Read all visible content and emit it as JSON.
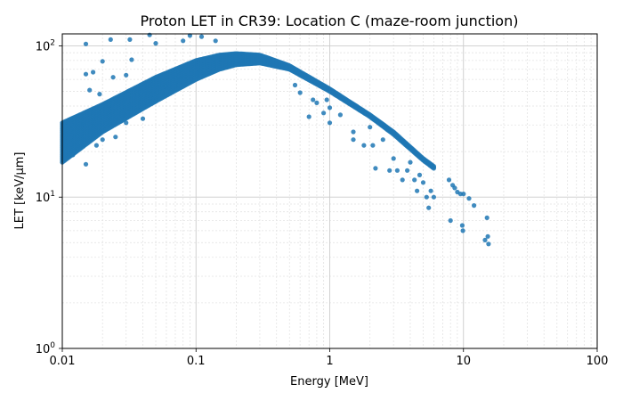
{
  "chart_data": {
    "type": "scatter",
    "title": "Proton LET in CR39: Location C (maze-room junction)",
    "xlabel": "Energy [MeV]",
    "ylabel": "LET [keV/µm]",
    "xscale": "log",
    "yscale": "log",
    "xlim": [
      0.01,
      100
    ],
    "ylim": [
      1,
      120
    ],
    "x_ticks": [
      0.01,
      0.1,
      1,
      10,
      100
    ],
    "x_tick_labels": [
      "0.01",
      "0.1",
      "1",
      "10",
      "100"
    ],
    "y_ticks": [
      1,
      10,
      100
    ],
    "grid": "major and minor",
    "legend": "none",
    "marker_color": "#1f77b4",
    "bands": {
      "upper_band": [
        {
          "x": 0.01,
          "y": 31
        },
        {
          "x": 0.02,
          "y": 41
        },
        {
          "x": 0.05,
          "y": 62
        },
        {
          "x": 0.1,
          "y": 80
        },
        {
          "x": 0.15,
          "y": 87
        },
        {
          "x": 0.2,
          "y": 89
        },
        {
          "x": 0.3,
          "y": 87
        },
        {
          "x": 0.5,
          "y": 74
        },
        {
          "x": 1,
          "y": 52
        },
        {
          "x": 2,
          "y": 35
        },
        {
          "x": 3,
          "y": 27
        },
        {
          "x": 5,
          "y": 18
        },
        {
          "x": 6,
          "y": 16
        }
      ],
      "lower_band": [
        {
          "x": 0.01,
          "y": 17
        },
        {
          "x": 0.02,
          "y": 27
        },
        {
          "x": 0.05,
          "y": 43
        },
        {
          "x": 0.1,
          "y": 60
        },
        {
          "x": 0.15,
          "y": 70
        },
        {
          "x": 0.2,
          "y": 75
        },
        {
          "x": 0.3,
          "y": 77
        },
        {
          "x": 0.5,
          "y": 70
        },
        {
          "x": 1,
          "y": 50
        },
        {
          "x": 2,
          "y": 34
        },
        {
          "x": 3,
          "y": 26
        },
        {
          "x": 5,
          "y": 17.5
        },
        {
          "x": 6,
          "y": 15.5
        }
      ]
    },
    "scatter_points": [
      {
        "x": 0.015,
        "y": 103
      },
      {
        "x": 0.023,
        "y": 110
      },
      {
        "x": 0.032,
        "y": 110
      },
      {
        "x": 0.045,
        "y": 118
      },
      {
        "x": 0.05,
        "y": 104
      },
      {
        "x": 0.08,
        "y": 108
      },
      {
        "x": 0.09,
        "y": 117
      },
      {
        "x": 0.11,
        "y": 115
      },
      {
        "x": 0.14,
        "y": 108
      },
      {
        "x": 0.015,
        "y": 65
      },
      {
        "x": 0.017,
        "y": 67
      },
      {
        "x": 0.02,
        "y": 79
      },
      {
        "x": 0.024,
        "y": 62
      },
      {
        "x": 0.03,
        "y": 64
      },
      {
        "x": 0.033,
        "y": 81
      },
      {
        "x": 0.016,
        "y": 51
      },
      {
        "x": 0.019,
        "y": 48
      },
      {
        "x": 0.025,
        "y": 25
      },
      {
        "x": 0.03,
        "y": 31
      },
      {
        "x": 0.04,
        "y": 33
      },
      {
        "x": 0.05,
        "y": 43
      },
      {
        "x": 0.06,
        "y": 50
      },
      {
        "x": 0.075,
        "y": 55
      },
      {
        "x": 0.015,
        "y": 16.5
      },
      {
        "x": 0.018,
        "y": 22
      },
      {
        "x": 0.02,
        "y": 24
      },
      {
        "x": 0.012,
        "y": 19
      },
      {
        "x": 0.55,
        "y": 55
      },
      {
        "x": 0.6,
        "y": 49
      },
      {
        "x": 0.7,
        "y": 34
      },
      {
        "x": 0.75,
        "y": 44
      },
      {
        "x": 0.8,
        "y": 42
      },
      {
        "x": 0.9,
        "y": 36
      },
      {
        "x": 0.95,
        "y": 44
      },
      {
        "x": 1.0,
        "y": 39
      },
      {
        "x": 1.0,
        "y": 31
      },
      {
        "x": 1.2,
        "y": 35
      },
      {
        "x": 1.5,
        "y": 27
      },
      {
        "x": 1.5,
        "y": 24
      },
      {
        "x": 1.8,
        "y": 22
      },
      {
        "x": 2.0,
        "y": 29
      },
      {
        "x": 2.1,
        "y": 22
      },
      {
        "x": 2.2,
        "y": 15.5
      },
      {
        "x": 2.5,
        "y": 24
      },
      {
        "x": 2.8,
        "y": 15
      },
      {
        "x": 3.0,
        "y": 18
      },
      {
        "x": 3.2,
        "y": 15
      },
      {
        "x": 3.5,
        "y": 13
      },
      {
        "x": 3.8,
        "y": 15
      },
      {
        "x": 4.0,
        "y": 17
      },
      {
        "x": 4.3,
        "y": 13
      },
      {
        "x": 4.5,
        "y": 11
      },
      {
        "x": 4.7,
        "y": 14
      },
      {
        "x": 5.0,
        "y": 12.5
      },
      {
        "x": 5.3,
        "y": 10
      },
      {
        "x": 5.5,
        "y": 8.5
      },
      {
        "x": 5.7,
        "y": 11
      },
      {
        "x": 6.0,
        "y": 10
      },
      {
        "x": 7.8,
        "y": 13
      },
      {
        "x": 8.3,
        "y": 12
      },
      {
        "x": 8.6,
        "y": 11.5
      },
      {
        "x": 9.0,
        "y": 10.8
      },
      {
        "x": 9.5,
        "y": 10.5
      },
      {
        "x": 10.0,
        "y": 10.5
      },
      {
        "x": 8.0,
        "y": 7
      },
      {
        "x": 9.8,
        "y": 6.5
      },
      {
        "x": 9.9,
        "y": 6
      },
      {
        "x": 11.0,
        "y": 9.8
      },
      {
        "x": 12.0,
        "y": 8.8
      },
      {
        "x": 15.0,
        "y": 7.3
      },
      {
        "x": 14.5,
        "y": 5.2
      },
      {
        "x": 15.2,
        "y": 5.5
      },
      {
        "x": 15.4,
        "y": 4.9
      }
    ]
  }
}
